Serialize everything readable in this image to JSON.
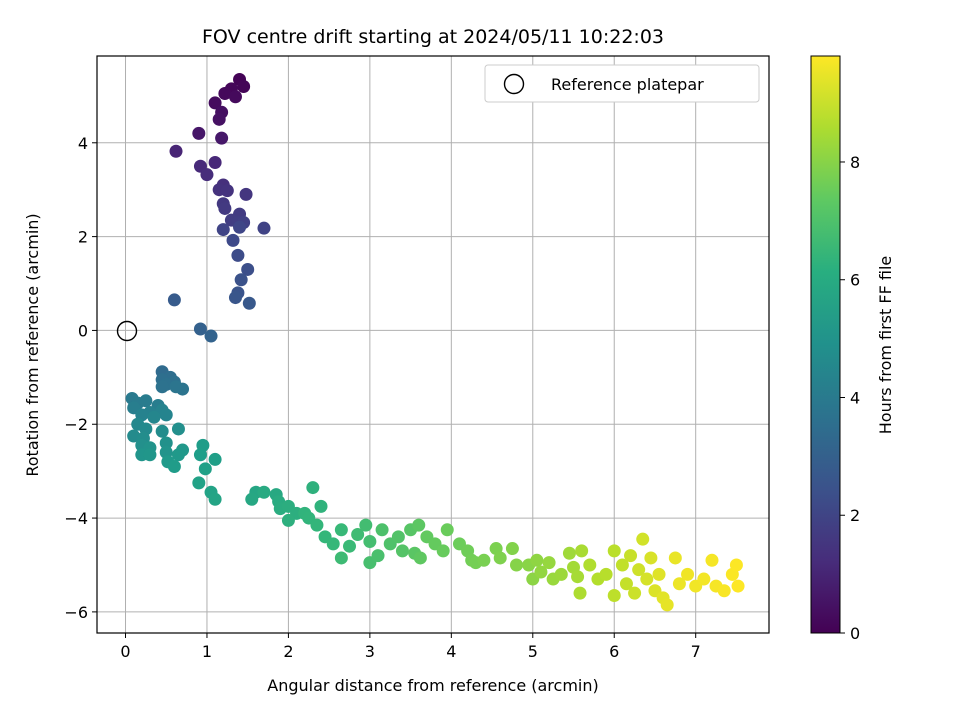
{
  "chart_data": {
    "type": "scatter",
    "title": "FOV centre drift starting at 2024/05/11 10:22:03",
    "xlabel": "Angular distance from reference (arcmin)",
    "ylabel": "Rotation from reference (arcmin)",
    "xlim": [
      -0.35,
      7.9
    ],
    "ylim": [
      -6.45,
      5.85
    ],
    "xticks": [
      "0",
      "1",
      "2",
      "3",
      "4",
      "5",
      "6",
      "7"
    ],
    "yticks": [
      "−6",
      "−4",
      "−2",
      "0",
      "2",
      "4"
    ],
    "grid": true,
    "legend": {
      "placement": "upper right",
      "entries": [
        "Reference platepar"
      ]
    },
    "reference_point": {
      "x": 0.0,
      "y": 0.0,
      "marker": "open circle"
    },
    "colorbar": {
      "label": "Hours from first FF file",
      "colormap": "viridis",
      "range": [
        0,
        9.8
      ],
      "ticks": [
        "0",
        "2",
        "4",
        "6",
        "8"
      ]
    },
    "series": [
      {
        "columns": [
          "x",
          "y",
          "hours"
        ],
        "points": [
          [
            1.4,
            5.35,
            0.05
          ],
          [
            1.45,
            5.2,
            0.1
          ],
          [
            1.3,
            5.15,
            0.15
          ],
          [
            1.22,
            5.05,
            0.2
          ],
          [
            1.35,
            4.98,
            0.25
          ],
          [
            1.1,
            4.85,
            0.3
          ],
          [
            1.18,
            4.65,
            0.4
          ],
          [
            1.15,
            4.5,
            0.45
          ],
          [
            0.9,
            4.2,
            0.6
          ],
          [
            1.18,
            4.1,
            0.65
          ],
          [
            0.62,
            3.82,
            1.0
          ],
          [
            1.1,
            3.58,
            1.1
          ],
          [
            0.92,
            3.5,
            1.15
          ],
          [
            1.0,
            3.32,
            1.25
          ],
          [
            1.2,
            3.1,
            1.35
          ],
          [
            1.15,
            3.0,
            1.4
          ],
          [
            1.25,
            2.98,
            1.45
          ],
          [
            1.48,
            2.9,
            1.55
          ],
          [
            1.2,
            2.7,
            1.6
          ],
          [
            1.22,
            2.6,
            1.65
          ],
          [
            1.4,
            2.48,
            1.7
          ],
          [
            1.3,
            2.35,
            1.75
          ],
          [
            1.38,
            2.3,
            1.8
          ],
          [
            1.45,
            2.3,
            1.85
          ],
          [
            1.7,
            2.18,
            1.95
          ],
          [
            1.2,
            2.15,
            2.0
          ],
          [
            1.4,
            2.2,
            2.05
          ],
          [
            1.32,
            1.92,
            2.15
          ],
          [
            1.38,
            1.6,
            2.25
          ],
          [
            1.5,
            1.3,
            2.35
          ],
          [
            1.42,
            1.08,
            2.45
          ],
          [
            1.38,
            0.8,
            2.55
          ],
          [
            1.35,
            0.7,
            2.6
          ],
          [
            1.52,
            0.58,
            2.7
          ],
          [
            0.6,
            0.65,
            2.8
          ],
          [
            0.92,
            0.03,
            3.0
          ],
          [
            1.05,
            -0.12,
            3.1
          ],
          [
            0.45,
            -0.88,
            3.4
          ],
          [
            0.55,
            -1.0,
            3.5
          ],
          [
            0.45,
            -1.05,
            3.55
          ],
          [
            0.6,
            -1.1,
            3.6
          ],
          [
            0.5,
            -1.15,
            3.65
          ],
          [
            0.45,
            -1.2,
            3.7
          ],
          [
            0.7,
            -1.25,
            3.75
          ],
          [
            0.62,
            -1.2,
            3.8
          ],
          [
            0.08,
            -1.45,
            4.0
          ],
          [
            0.15,
            -1.55,
            4.05
          ],
          [
            0.25,
            -1.5,
            4.1
          ],
          [
            0.4,
            -1.6,
            4.15
          ],
          [
            0.1,
            -1.65,
            4.2
          ],
          [
            0.3,
            -1.75,
            4.3
          ],
          [
            0.2,
            -1.8,
            4.35
          ],
          [
            0.45,
            -1.7,
            4.4
          ],
          [
            0.5,
            -1.8,
            4.45
          ],
          [
            0.35,
            -1.85,
            4.5
          ],
          [
            0.15,
            -2.0,
            4.6
          ],
          [
            0.25,
            -2.1,
            4.65
          ],
          [
            0.1,
            -2.25,
            4.7
          ],
          [
            0.45,
            -2.15,
            4.75
          ],
          [
            0.22,
            -2.3,
            4.8
          ],
          [
            0.65,
            -2.1,
            4.85
          ],
          [
            0.2,
            -2.45,
            4.9
          ],
          [
            0.5,
            -2.4,
            4.95
          ],
          [
            0.3,
            -2.5,
            5.0
          ],
          [
            0.5,
            -2.6,
            5.05
          ],
          [
            0.2,
            -2.65,
            5.1
          ],
          [
            0.3,
            -2.65,
            5.15
          ],
          [
            0.7,
            -2.55,
            5.2
          ],
          [
            0.65,
            -2.65,
            5.25
          ],
          [
            0.52,
            -2.8,
            5.3
          ],
          [
            0.6,
            -2.9,
            5.35
          ],
          [
            0.95,
            -2.45,
            5.4
          ],
          [
            0.92,
            -2.65,
            5.45
          ],
          [
            1.1,
            -2.75,
            5.5
          ],
          [
            0.98,
            -2.95,
            5.55
          ],
          [
            0.9,
            -3.25,
            5.6
          ],
          [
            1.05,
            -3.45,
            5.65
          ],
          [
            1.1,
            -3.6,
            5.7
          ],
          [
            1.6,
            -3.45,
            5.8
          ],
          [
            1.55,
            -3.6,
            5.85
          ],
          [
            1.85,
            -3.5,
            5.9
          ],
          [
            1.7,
            -3.45,
            5.95
          ],
          [
            1.88,
            -3.65,
            6.0
          ],
          [
            1.9,
            -3.8,
            6.05
          ],
          [
            2.0,
            -3.75,
            6.1
          ],
          [
            2.1,
            -3.9,
            6.15
          ],
          [
            2.0,
            -4.05,
            6.2
          ],
          [
            2.3,
            -3.35,
            6.25
          ],
          [
            2.4,
            -3.75,
            6.3
          ],
          [
            2.2,
            -3.9,
            6.35
          ],
          [
            2.25,
            -4.0,
            6.4
          ],
          [
            2.35,
            -4.15,
            6.45
          ],
          [
            2.45,
            -4.4,
            6.5
          ],
          [
            2.55,
            -4.55,
            6.55
          ],
          [
            2.65,
            -4.25,
            6.6
          ],
          [
            2.75,
            -4.6,
            6.65
          ],
          [
            2.65,
            -4.85,
            6.7
          ],
          [
            2.85,
            -4.35,
            6.75
          ],
          [
            2.95,
            -4.15,
            6.8
          ],
          [
            3.0,
            -4.5,
            6.85
          ],
          [
            3.0,
            -4.95,
            6.9
          ],
          [
            3.1,
            -4.8,
            6.95
          ],
          [
            3.15,
            -4.25,
            7.0
          ],
          [
            3.25,
            -4.55,
            7.05
          ],
          [
            3.35,
            -4.4,
            7.1
          ],
          [
            3.4,
            -4.7,
            7.15
          ],
          [
            3.5,
            -4.25,
            7.2
          ],
          [
            3.55,
            -4.75,
            7.25
          ],
          [
            3.6,
            -4.15,
            7.3
          ],
          [
            3.62,
            -4.85,
            7.35
          ],
          [
            3.7,
            -4.4,
            7.4
          ],
          [
            3.8,
            -4.55,
            7.45
          ],
          [
            3.9,
            -4.7,
            7.5
          ],
          [
            3.95,
            -4.25,
            7.55
          ],
          [
            4.1,
            -4.55,
            7.6
          ],
          [
            4.2,
            -4.7,
            7.65
          ],
          [
            4.25,
            -4.9,
            7.7
          ],
          [
            4.3,
            -4.95,
            7.75
          ],
          [
            4.4,
            -4.9,
            7.8
          ],
          [
            4.55,
            -4.65,
            7.85
          ],
          [
            4.6,
            -4.85,
            7.9
          ],
          [
            4.75,
            -4.65,
            7.95
          ],
          [
            4.8,
            -5.0,
            8.0
          ],
          [
            4.95,
            -5.0,
            8.05
          ],
          [
            5.0,
            -5.3,
            8.1
          ],
          [
            5.05,
            -4.9,
            8.15
          ],
          [
            5.1,
            -5.15,
            8.2
          ],
          [
            5.2,
            -4.95,
            8.25
          ],
          [
            5.25,
            -5.3,
            8.3
          ],
          [
            5.35,
            -5.2,
            8.35
          ],
          [
            5.45,
            -4.75,
            8.4
          ],
          [
            5.5,
            -5.05,
            8.45
          ],
          [
            5.55,
            -5.25,
            8.5
          ],
          [
            5.6,
            -4.7,
            8.55
          ],
          [
            5.58,
            -5.6,
            8.6
          ],
          [
            5.7,
            -5.0,
            8.65
          ],
          [
            5.8,
            -5.3,
            8.7
          ],
          [
            5.9,
            -5.2,
            8.75
          ],
          [
            6.0,
            -4.7,
            8.8
          ],
          [
            6.0,
            -5.65,
            8.85
          ],
          [
            6.1,
            -5.0,
            8.9
          ],
          [
            6.15,
            -5.4,
            8.95
          ],
          [
            6.2,
            -4.8,
            9.0
          ],
          [
            6.25,
            -5.6,
            9.05
          ],
          [
            6.3,
            -5.1,
            9.1
          ],
          [
            6.35,
            -4.45,
            9.15
          ],
          [
            6.4,
            -5.3,
            9.2
          ],
          [
            6.45,
            -4.85,
            9.25
          ],
          [
            6.5,
            -5.55,
            9.3
          ],
          [
            6.55,
            -5.2,
            9.35
          ],
          [
            6.6,
            -5.7,
            9.4
          ],
          [
            6.65,
            -5.85,
            9.45
          ],
          [
            6.75,
            -4.85,
            9.5
          ],
          [
            6.8,
            -5.4,
            9.55
          ],
          [
            6.9,
            -5.2,
            9.6
          ],
          [
            7.0,
            -5.45,
            9.62
          ],
          [
            7.1,
            -5.3,
            9.65
          ],
          [
            7.2,
            -4.9,
            9.68
          ],
          [
            7.25,
            -5.45,
            9.7
          ],
          [
            7.35,
            -5.55,
            9.72
          ],
          [
            7.45,
            -5.2,
            9.75
          ],
          [
            7.5,
            -5.0,
            9.78
          ],
          [
            7.52,
            -5.45,
            9.8
          ]
        ]
      }
    ]
  }
}
